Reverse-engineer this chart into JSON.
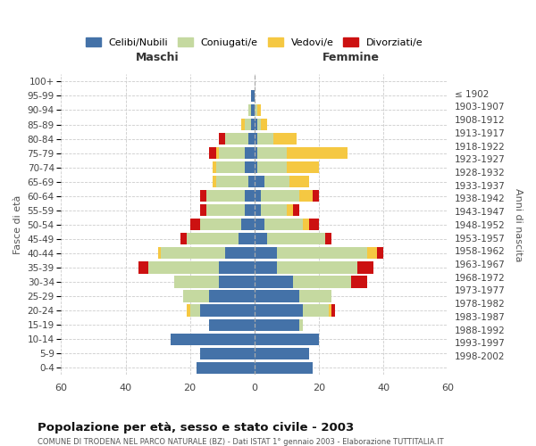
{
  "age_groups": [
    "0-4",
    "5-9",
    "10-14",
    "15-19",
    "20-24",
    "25-29",
    "30-34",
    "35-39",
    "40-44",
    "45-49",
    "50-54",
    "55-59",
    "60-64",
    "65-69",
    "70-74",
    "75-79",
    "80-84",
    "85-89",
    "90-94",
    "95-99",
    "100+"
  ],
  "birth_years": [
    "1998-2002",
    "1993-1997",
    "1988-1992",
    "1983-1987",
    "1978-1982",
    "1973-1977",
    "1968-1972",
    "1963-1967",
    "1958-1962",
    "1953-1957",
    "1948-1952",
    "1943-1947",
    "1938-1942",
    "1933-1937",
    "1928-1932",
    "1923-1927",
    "1918-1922",
    "1913-1917",
    "1908-1912",
    "1903-1907",
    "≤ 1902"
  ],
  "males": {
    "celibi": [
      18,
      17,
      26,
      14,
      17,
      14,
      11,
      11,
      9,
      5,
      4,
      3,
      3,
      2,
      3,
      3,
      2,
      1,
      1,
      1,
      0
    ],
    "coniugati": [
      0,
      0,
      0,
      0,
      3,
      8,
      14,
      22,
      20,
      16,
      13,
      12,
      12,
      10,
      9,
      8,
      7,
      2,
      1,
      0,
      0
    ],
    "vedovi": [
      0,
      0,
      0,
      0,
      1,
      0,
      0,
      0,
      1,
      0,
      0,
      0,
      0,
      1,
      1,
      1,
      0,
      1,
      0,
      0,
      0
    ],
    "divorziati": [
      0,
      0,
      0,
      0,
      0,
      0,
      0,
      3,
      0,
      2,
      3,
      2,
      2,
      0,
      0,
      2,
      2,
      0,
      0,
      0,
      0
    ]
  },
  "females": {
    "nubili": [
      18,
      17,
      20,
      14,
      15,
      14,
      12,
      7,
      7,
      4,
      3,
      2,
      2,
      3,
      1,
      1,
      1,
      1,
      0,
      0,
      0
    ],
    "coniugate": [
      0,
      0,
      0,
      1,
      8,
      10,
      18,
      25,
      28,
      18,
      12,
      8,
      12,
      8,
      9,
      9,
      5,
      1,
      1,
      0,
      0
    ],
    "vedove": [
      0,
      0,
      0,
      0,
      1,
      0,
      0,
      0,
      3,
      0,
      2,
      2,
      4,
      6,
      10,
      19,
      7,
      2,
      1,
      0,
      0
    ],
    "divorziate": [
      0,
      0,
      0,
      0,
      1,
      0,
      5,
      5,
      2,
      2,
      3,
      2,
      2,
      0,
      0,
      0,
      0,
      0,
      0,
      0,
      0
    ]
  },
  "colors": {
    "celibi": "#4472a8",
    "coniugati": "#c5d9a0",
    "vedovi": "#f5c842",
    "divorziati": "#cc1111"
  },
  "title": "Popolazione per età, sesso e stato civile - 2003",
  "subtitle": "COMUNE DI TRODENA NEL PARCO NATURALE (BZ) - Dati ISTAT 1° gennaio 2003 - Elaborazione TUTTITALIA.IT",
  "xlabel_left": "Maschi",
  "xlabel_right": "Femmine",
  "ylabel_left": "Fasce di età",
  "ylabel_right": "Anni di nascita",
  "xlim": 60,
  "bg_color": "#ffffff",
  "grid_color": "#cccccc"
}
